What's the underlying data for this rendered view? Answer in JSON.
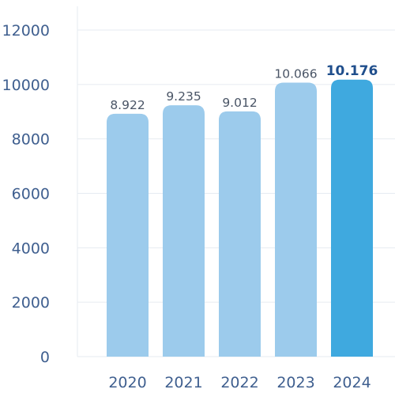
{
  "chart_data": {
    "type": "bar",
    "title": "",
    "xlabel": "",
    "ylabel": "",
    "categories": [
      "2020",
      "2021",
      "2022",
      "2023",
      "2024"
    ],
    "values": [
      8922,
      9235,
      9012,
      10066,
      10176
    ],
    "value_labels": [
      "8.922",
      "9.235",
      "9.012",
      "10.066",
      "10.176"
    ],
    "highlight_index": 4,
    "yticks": [
      0,
      2000,
      4000,
      6000,
      8000,
      10000,
      12000
    ],
    "ytick_labels": [
      "0",
      "2000",
      "4000",
      "6000",
      "8000",
      "10000",
      "12000"
    ],
    "ylim": [
      0,
      12000
    ],
    "grid": true,
    "legend": "none",
    "colors": {
      "bar": "#9ccbec",
      "bar_highlight": "#3fa9df",
      "grid": "#e6ebf1",
      "tick_text": "#3f5f8f",
      "value_text": "#4a5566",
      "highlight_text": "#1f4e8c"
    }
  }
}
